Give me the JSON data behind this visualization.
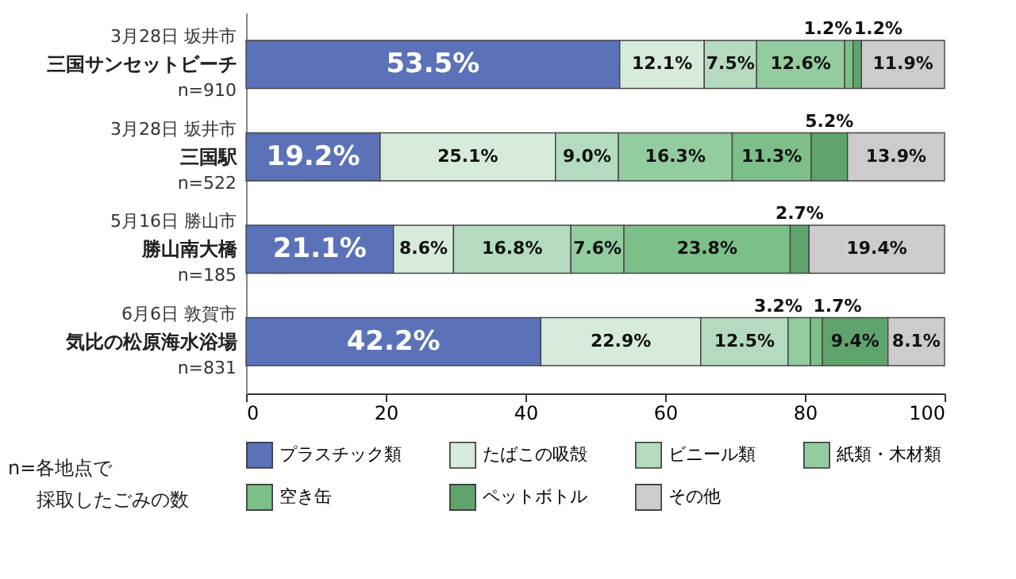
{
  "chart_data": {
    "type": "bar",
    "orientation": "horizontal",
    "stacked": true,
    "categories": [
      "三国サンセットビーチ",
      "三国駅",
      "勝山南大橋",
      "気比の松原海水浴場"
    ],
    "series": [
      {
        "name": "プラスチック類",
        "color": "#5b72b8",
        "values": [
          53.5,
          19.2,
          21.1,
          42.2
        ],
        "value_labels": [
          "53.5%",
          "19.2%",
          "21.1%",
          "42.2%"
        ]
      },
      {
        "name": "たばこの吸殻",
        "color": "#d6ebdc",
        "values": [
          12.1,
          25.1,
          8.6,
          22.9
        ],
        "value_labels": [
          "12.1%",
          "25.1%",
          "8.6%",
          "22.9%"
        ]
      },
      {
        "name": "ビニール類",
        "color": "#b4dbbf",
        "values": [
          7.5,
          9.0,
          16.8,
          12.5
        ],
        "value_labels": [
          "7.5%",
          "9.0%",
          "16.8%",
          "12.5%"
        ]
      },
      {
        "name": "紙類・木材類",
        "color": "#93cc9f",
        "values": [
          12.6,
          16.3,
          7.6,
          3.2
        ],
        "value_labels": [
          "12.6%",
          "16.3%",
          "7.6%",
          "3.2%"
        ]
      },
      {
        "name": "空き缶",
        "color": "#7dbf89",
        "values": [
          1.2,
          11.3,
          23.8,
          1.7
        ],
        "value_labels": [
          "1.2%",
          "11.3%",
          "23.8%",
          "1.7%"
        ]
      },
      {
        "name": "ペットボトル",
        "color": "#5fa46c",
        "values": [
          1.2,
          5.2,
          2.7,
          9.4
        ],
        "value_labels": [
          "1.2%",
          "5.2%",
          "2.7%",
          "9.4%"
        ]
      },
      {
        "name": "その他",
        "color": "#cccccc",
        "values": [
          11.9,
          13.9,
          19.4,
          8.1
        ],
        "value_labels": [
          "11.9%",
          "13.9%",
          "19.4%",
          "8.1%"
        ]
      }
    ],
    "xlim": [
      0,
      100
    ],
    "xticks": [
      0,
      20,
      40,
      60,
      80,
      100
    ],
    "grid": false,
    "legend": "bottom",
    "annotations": [
      "3月28日 坂井市",
      "n=910",
      "3月28日 坂井市",
      "n=522",
      "5月16日 勝山市",
      "n=185",
      "6月6日 敦賀市",
      "n=831",
      "n=各地点で",
      "採取したごみの数"
    ]
  }
}
